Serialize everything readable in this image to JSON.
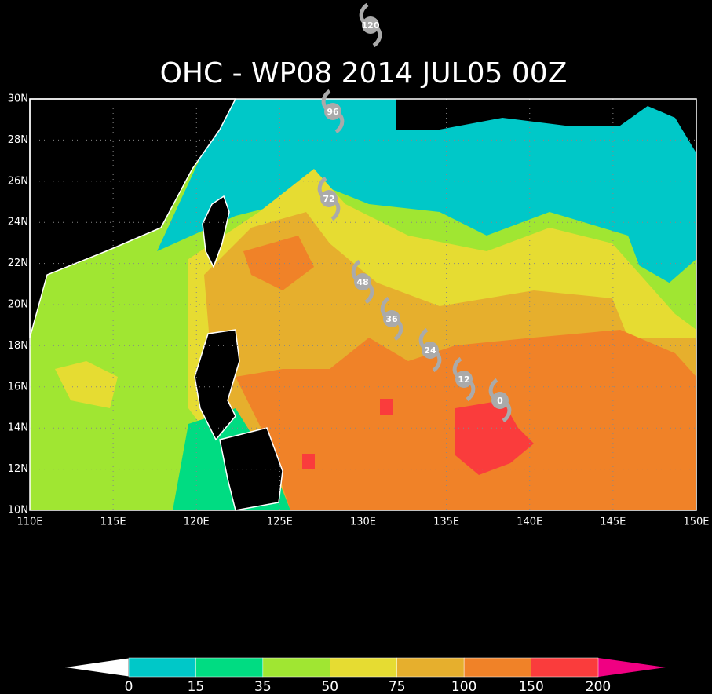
{
  "title": "OHC - WP08 2014 JUL05 00Z",
  "map": {
    "xlim": [
      110,
      150
    ],
    "ylim": [
      10,
      30
    ],
    "xticks": [
      {
        "value": 110,
        "label": "110E"
      },
      {
        "value": 115,
        "label": "115E"
      },
      {
        "value": 120,
        "label": "120E"
      },
      {
        "value": 125,
        "label": "125E"
      },
      {
        "value": 130,
        "label": "130E"
      },
      {
        "value": 135,
        "label": "135E"
      },
      {
        "value": 140,
        "label": "140E"
      },
      {
        "value": 145,
        "label": "145E"
      },
      {
        "value": 150,
        "label": "150E"
      }
    ],
    "yticks": [
      {
        "value": 10,
        "label": "10N"
      },
      {
        "value": 12,
        "label": "12N"
      },
      {
        "value": 14,
        "label": "14N"
      },
      {
        "value": 16,
        "label": "16N"
      },
      {
        "value": 18,
        "label": "18N"
      },
      {
        "value": 20,
        "label": "20N"
      },
      {
        "value": 22,
        "label": "22N"
      },
      {
        "value": 24,
        "label": "24N"
      },
      {
        "value": 26,
        "label": "26N"
      },
      {
        "value": 28,
        "label": "28N"
      },
      {
        "value": 30,
        "label": "30N"
      }
    ],
    "grid": true
  },
  "track": {
    "labels": [
      "120",
      "96",
      "72",
      "48",
      "36",
      "24",
      "12",
      "0"
    ]
  },
  "colorbar": {
    "levels": [
      0,
      15,
      35,
      50,
      75,
      100,
      150,
      200
    ],
    "colors": [
      "#00c8c8",
      "#00dc82",
      "#a0e632",
      "#e6dc32",
      "#e6af2d",
      "#f08228",
      "#fa3c3c"
    ],
    "under_color": "#ffffff",
    "over_color": "#f00082"
  }
}
